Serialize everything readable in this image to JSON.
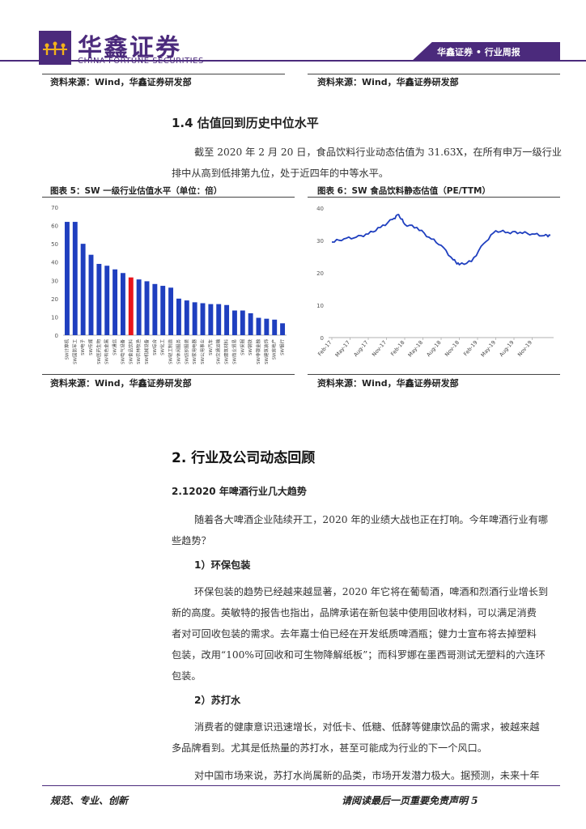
{
  "header": {
    "logo_title": "华鑫证券",
    "logo_subtitle": "CHINA FORTUNE SECURITIES",
    "tab_label": "华鑫证券 • 行业周报"
  },
  "top_sources": {
    "left": "资料来源：Wind，华鑫证券研发部",
    "right": "资料来源：Wind，华鑫证券研发部"
  },
  "section_1_4": {
    "heading": "1.4 估值回到历史中位水平",
    "paragraph_line1": "截至 2020 年 2 月 20 日，食品饮料行业动态估值为 31.63X，在所有申万一级行业",
    "paragraph_line2": "排中从高到低排第九位，处于近四年的中等水平。"
  },
  "figure5": {
    "title": "图表 5：SW 一级行业估值水平（单位：倍）",
    "source": "资料来源：Wind，华鑫证券研发部"
  },
  "figure6": {
    "title": "图表 6：SW 食品饮料静态估值（PE/TTM）",
    "source": "资料来源：Wind，华鑫证券研发部"
  },
  "chart_data": [
    {
      "type": "bar",
      "ylim": [
        0,
        70
      ],
      "yticks": [
        0,
        10,
        20,
        30,
        40,
        50,
        60,
        70
      ],
      "categories": [
        "SW计算机",
        "SW国防军工",
        "SW电子",
        "SW传媒",
        "SW医药生物",
        "SW有色金属",
        "SW通信",
        "SW电气设备",
        "SW食品饮料",
        "SW农林牧渔",
        "SW机械设备",
        "SW综合",
        "SW化工",
        "SW轻工制造",
        "SW休闲服务",
        "SW纺织服装",
        "SW家用电器",
        "SW公用事业",
        "SW汽车",
        "SW交通运输",
        "SW建筑材料",
        "SW商业贸易",
        "SW采掘",
        "SW钢铁",
        "SW非银金融",
        "SW建筑装饰",
        "SW房地产",
        "SW银行"
      ],
      "values": [
        62,
        62,
        50,
        44,
        39,
        38,
        36,
        34,
        31.6,
        30.5,
        29.5,
        28,
        27,
        26,
        20,
        19,
        18,
        17.5,
        17,
        17,
        16.5,
        13.5,
        13.5,
        12,
        9.5,
        9,
        8.5,
        6.5
      ],
      "highlight_category": "SW食品饮料",
      "bar_color": "#1f3fbf",
      "highlight_color": "#e8141b"
    },
    {
      "type": "line",
      "ylim": [
        0,
        40
      ],
      "yticks": [
        0,
        10,
        20,
        30,
        40
      ],
      "xticks": [
        "Feb-17",
        "May-17",
        "Aug-17",
        "Nov-17",
        "Feb-18",
        "May-18",
        "Aug-18",
        "Nov-18",
        "Feb-19",
        "May-19",
        "Aug-19",
        "Nov-19"
      ],
      "x": [
        "Feb-17",
        "Apr-17",
        "Jun-17",
        "Aug-17",
        "Oct-17",
        "Dec-17",
        "Jan-18",
        "Feb-18",
        "Apr-18",
        "Jun-18",
        "Aug-18",
        "Oct-18",
        "Nov-18",
        "Jan-19",
        "Mar-19",
        "May-19",
        "Jul-19",
        "Sep-19",
        "Nov-19",
        "Jan-20",
        "Feb-20"
      ],
      "series": [
        {
          "values": [
            29.5,
            30.5,
            31,
            32,
            34,
            36.5,
            38,
            35,
            34,
            31,
            28.5,
            24,
            22.5,
            23.5,
            29,
            33,
            32.5,
            32.5,
            32,
            31.5,
            31.6
          ],
          "color": "#1f3fbf"
        }
      ]
    }
  ],
  "section_2": {
    "heading": "2. 行业及公司动态回顾",
    "sub_heading": "2.12020 年啤酒行业几大趋势",
    "intro_line1": "随着各大啤酒企业陆续开工，2020 年的业绩大战也正在打响。今年啤酒行业有哪",
    "intro_line2": "些趋势？",
    "point1_heading": "1）环保包装",
    "point1_lines": [
      "环保包装的趋势已经越来越显著，2020 年它将在葡萄酒，啤酒和烈酒行业增长到",
      "新的高度。英敏特的报告也指出，品牌承诺在新包装中使用回收材料，可以满足消费",
      "者对可回收包装的需求。去年嘉士伯已经在开发纸质啤酒瓶；健力士宣布将去掉塑料",
      "包装，改用“100%可回收和可生物降解纸板”；而科罗娜在墨西哥测试无塑料的六连环",
      "包装。"
    ],
    "point2_heading": "2）苏打水",
    "point2_lines": [
      "消费者的健康意识迅速增长，对低卡、低糖、低酵等健康饮品的需求，被越来越",
      "多品牌看到。尤其是低热量的苏打水，甚至可能成为行业的下一个风口。"
    ],
    "point3_line": "对中国市场来说，苏打水尚属新的品类，市场开发潜力极大。据预测，未来十年"
  },
  "footer": {
    "left": "规范、专业、创新",
    "right": "请阅读最后一页重要免责声明 5"
  }
}
